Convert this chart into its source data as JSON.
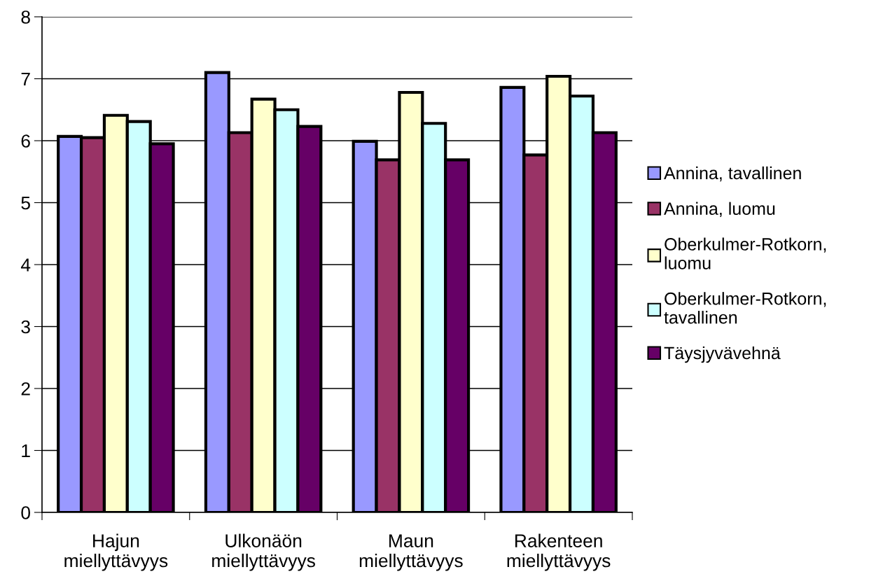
{
  "chart_data": {
    "type": "bar",
    "categories": [
      "Hajun\nmiellyttävyys",
      "Ulkonäön\nmiellyttävyys",
      "Maun\nmiellyttävyys",
      "Rakenteen\nmiellyttävyys"
    ],
    "series": [
      {
        "name": "Annina, tavallinen",
        "color": "#9999ff",
        "values": [
          6.07,
          7.1,
          5.99,
          6.86
        ]
      },
      {
        "name": "Annina, luomu",
        "color": "#993366",
        "values": [
          6.05,
          6.13,
          5.69,
          5.77
        ]
      },
      {
        "name": "Oberkulmer-Rotkorn,\nluomu",
        "color": "#ffffcc",
        "values": [
          6.41,
          6.67,
          6.78,
          7.04
        ]
      },
      {
        "name": "Oberkulmer-Rotkorn,\ntavallinen",
        "color": "#ccffff",
        "values": [
          6.31,
          6.5,
          6.28,
          6.72
        ]
      },
      {
        "name": "Täysjyvävehnä",
        "color": "#660066",
        "values": [
          5.95,
          6.23,
          5.69,
          6.13
        ]
      }
    ],
    "ylim": [
      0,
      8
    ],
    "yticks": [
      0,
      1,
      2,
      3,
      4,
      5,
      6,
      7,
      8
    ],
    "grid": "y",
    "legend": "right"
  }
}
